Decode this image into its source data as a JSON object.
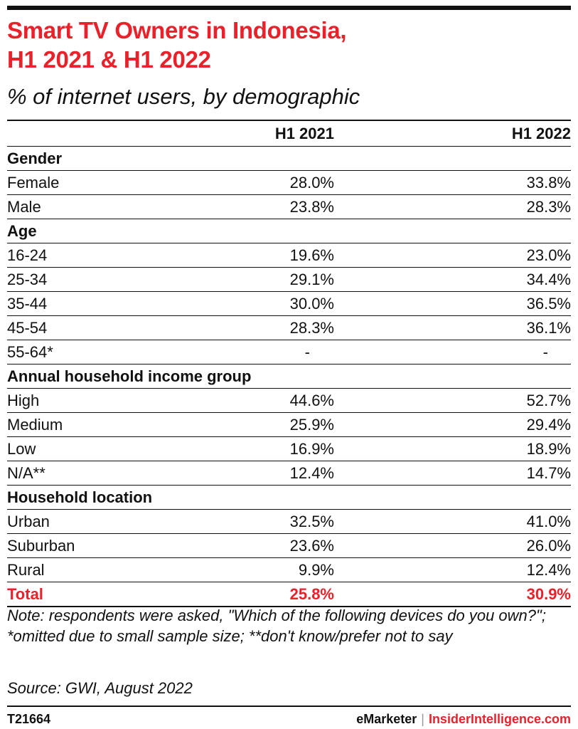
{
  "header": {
    "title_line1": "Smart TV Owners in Indonesia,",
    "title_line2": "H1 2021 & H1 2022",
    "subtitle": "% of internet users, by demographic"
  },
  "chart_data": {
    "type": "table",
    "columns": [
      "H1 2021",
      "H1 2022"
    ],
    "groups": [
      {
        "name": "Gender",
        "rows": [
          {
            "label": "Female",
            "values": [
              "28.0%",
              "33.8%"
            ]
          },
          {
            "label": "Male",
            "values": [
              "23.8%",
              "28.3%"
            ]
          }
        ]
      },
      {
        "name": "Age",
        "rows": [
          {
            "label": "16-24",
            "values": [
              "19.6%",
              "23.0%"
            ]
          },
          {
            "label": "25-34",
            "values": [
              "29.1%",
              "34.4%"
            ]
          },
          {
            "label": "35-44",
            "values": [
              "30.0%",
              "36.5%"
            ]
          },
          {
            "label": "45-54",
            "values": [
              "28.3%",
              "36.1%"
            ]
          },
          {
            "label": "55-64*",
            "values": [
              "-",
              "-"
            ]
          }
        ]
      },
      {
        "name": "Annual household income group",
        "rows": [
          {
            "label": "High",
            "values": [
              "44.6%",
              "52.7%"
            ]
          },
          {
            "label": "Medium",
            "values": [
              "25.9%",
              "29.4%"
            ]
          },
          {
            "label": "Low",
            "values": [
              "16.9%",
              "18.9%"
            ]
          },
          {
            "label": "N/A**",
            "values": [
              "12.4%",
              "14.7%"
            ]
          }
        ]
      },
      {
        "name": "Household location",
        "rows": [
          {
            "label": "Urban",
            "values": [
              "32.5%",
              "41.0%"
            ]
          },
          {
            "label": "Suburban",
            "values": [
              "23.6%",
              "26.0%"
            ]
          },
          {
            "label": "Rural",
            "values": [
              "9.9%",
              "12.4%"
            ]
          }
        ]
      }
    ],
    "total": {
      "label": "Total",
      "values": [
        "25.8%",
        "30.9%"
      ]
    }
  },
  "footer": {
    "note": "Note: respondents were asked, \"Which of the following devices do you own?\"; *omitted due to small sample size; **don't know/prefer not to say",
    "source": "Source: GWI, August 2022",
    "chart_id": "T21664",
    "brand_left": "eMarketer",
    "brand_separator": "|",
    "brand_right": "InsiderIntelligence.com"
  },
  "colors": {
    "accent": "#e8212a",
    "text": "#111111"
  }
}
